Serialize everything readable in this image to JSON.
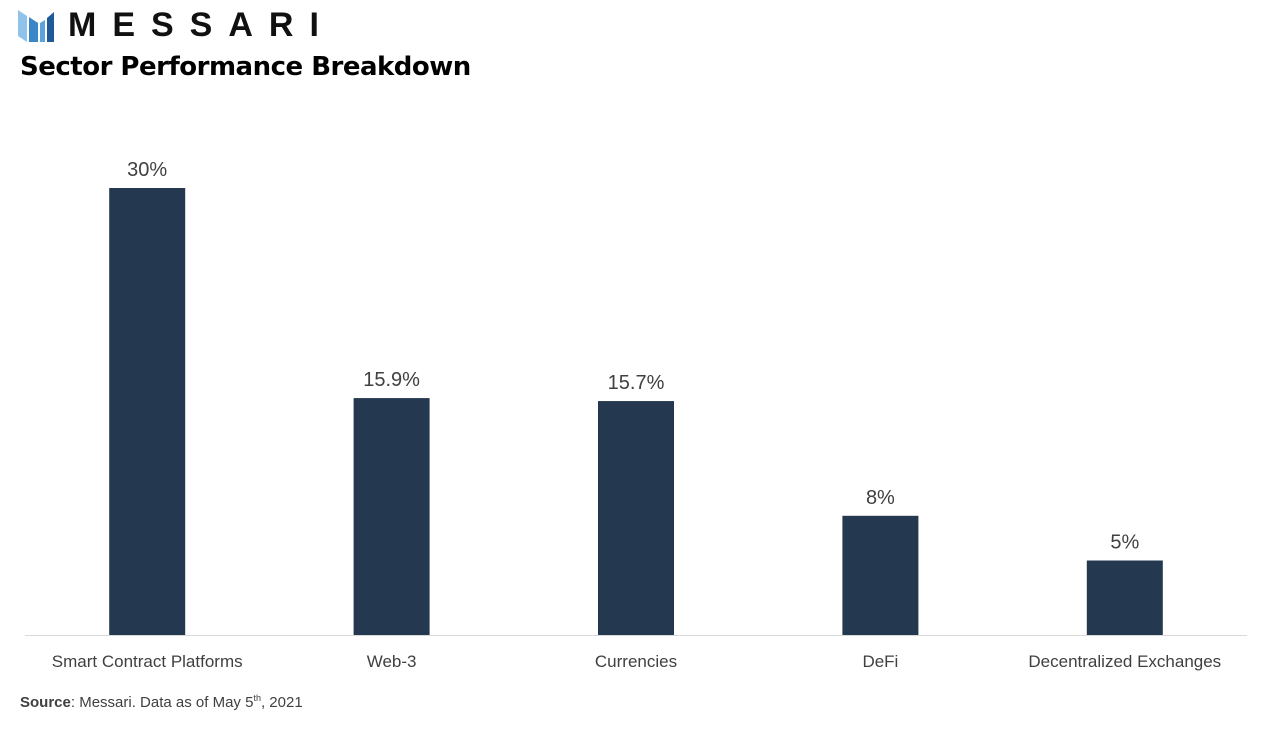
{
  "brand": {
    "wordmark": "MESSARI",
    "logo_icon": "messari-logo-icon",
    "logo_colors": [
      "#8fc3ea",
      "#3b86c8",
      "#1f5a96"
    ]
  },
  "header": {
    "title": "Sector Performance Breakdown"
  },
  "footer": {
    "source_label": "Source",
    "source_text_pre": ": Messari. Data as of May 5",
    "source_sup": "th",
    "source_text_post": ", 2021"
  },
  "chart_data": {
    "type": "bar",
    "title": "Sector Performance Breakdown",
    "xlabel": "",
    "ylabel": "",
    "categories": [
      "Smart Contract Platforms",
      "Web-3",
      "Currencies",
      "DeFi",
      "Decentralized Exchanges"
    ],
    "values": [
      30,
      15.9,
      15.7,
      8,
      5
    ],
    "value_labels": [
      "30%",
      "15.9%",
      "15.7%",
      "8%",
      "5%"
    ],
    "unit": "%",
    "ylim": [
      0,
      30
    ],
    "grid": false,
    "legend": "none",
    "bar_color": "#243850",
    "axis_color": "#d9d9d9"
  }
}
